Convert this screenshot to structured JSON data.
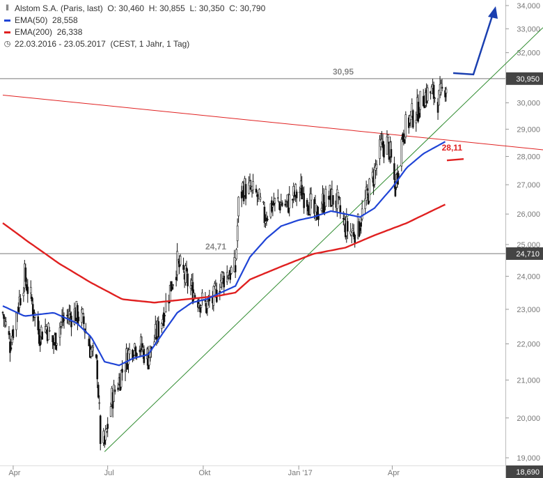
{
  "chart_data": {
    "type": "candlestick",
    "title": "Alstom S.A. (Paris, last)",
    "ohlc": {
      "open_label": "O:",
      "open": "30,460",
      "high_label": "H:",
      "high": "30,855",
      "low_label": "L:",
      "low": "30,350",
      "close_label": "C:",
      "close": "30,790"
    },
    "indicators": [
      {
        "name": "EMA(50)",
        "value": "28,558",
        "color": "#1f44d6"
      },
      {
        "name": "EMA(200)",
        "value": "26,338",
        "color": "#e02020"
      }
    ],
    "period": "22.03.2016 - 23.05.2017",
    "period_info": "(CEST, 1 Jahr, 1 Tag)",
    "ylim": [
      18.6,
      34.3
    ],
    "y_scale": "log",
    "y_ticks": [
      {
        "v": 19,
        "label": "19,000"
      },
      {
        "v": 20,
        "label": "20,000"
      },
      {
        "v": 21,
        "label": "21,000"
      },
      {
        "v": 22,
        "label": "22,000"
      },
      {
        "v": 23,
        "label": "23,000"
      },
      {
        "v": 24,
        "label": "24,000"
      },
      {
        "v": 25,
        "label": "25,000"
      },
      {
        "v": 26,
        "label": "26,000"
      },
      {
        "v": 27,
        "label": "27,000"
      },
      {
        "v": 28,
        "label": "28,000"
      },
      {
        "v": 29,
        "label": "29,000"
      },
      {
        "v": 30,
        "label": "30,000"
      },
      {
        "v": 31,
        "label": "31,000"
      },
      {
        "v": 32,
        "label": "32,000"
      },
      {
        "v": 33,
        "label": "33,000"
      },
      {
        "v": 34,
        "label": "34,000"
      }
    ],
    "x_ticks": [
      {
        "date": "2016-04-01",
        "label": "Apr"
      },
      {
        "date": "2016-07-01",
        "label": "Jul"
      },
      {
        "date": "2016-10-01",
        "label": "Okt"
      },
      {
        "date": "2017-01-01",
        "label": "Jan '17"
      },
      {
        "date": "2017-04-01",
        "label": "Apr"
      }
    ],
    "x_start": "2016-03-22",
    "x_end": "2017-05-23",
    "price_anchors": [
      [
        "2016-03-22",
        22.9
      ],
      [
        "2016-03-29",
        22.0
      ],
      [
        "2016-04-05",
        23.0
      ],
      [
        "2016-04-12",
        24.0
      ],
      [
        "2016-04-19",
        23.2
      ],
      [
        "2016-04-26",
        22.3
      ],
      [
        "2016-05-03",
        22.5
      ],
      [
        "2016-05-10",
        22.0
      ],
      [
        "2016-05-17",
        22.6
      ],
      [
        "2016-05-24",
        22.8
      ],
      [
        "2016-05-31",
        22.9
      ],
      [
        "2016-06-07",
        22.7
      ],
      [
        "2016-06-14",
        21.9
      ],
      [
        "2016-06-21",
        21.3
      ],
      [
        "2016-06-24",
        19.5
      ],
      [
        "2016-06-28",
        19.3
      ],
      [
        "2016-07-05",
        20.5
      ],
      [
        "2016-07-12",
        21.0
      ],
      [
        "2016-07-19",
        21.6
      ],
      [
        "2016-07-26",
        22.0
      ],
      [
        "2016-08-02",
        21.9
      ],
      [
        "2016-08-09",
        21.6
      ],
      [
        "2016-08-16",
        22.2
      ],
      [
        "2016-08-23",
        22.8
      ],
      [
        "2016-08-30",
        23.6
      ],
      [
        "2016-09-06",
        24.4
      ],
      [
        "2016-09-13",
        24.0
      ],
      [
        "2016-09-20",
        23.6
      ],
      [
        "2016-09-27",
        23.3
      ],
      [
        "2016-10-04",
        23.1
      ],
      [
        "2016-10-11",
        23.3
      ],
      [
        "2016-10-18",
        23.9
      ],
      [
        "2016-10-25",
        24.1
      ],
      [
        "2016-11-01",
        24.2
      ],
      [
        "2016-11-04",
        26.3
      ],
      [
        "2016-11-08",
        26.9
      ],
      [
        "2016-11-15",
        26.8
      ],
      [
        "2016-11-22",
        26.6
      ],
      [
        "2016-11-29",
        25.9
      ],
      [
        "2016-12-06",
        26.3
      ],
      [
        "2016-12-13",
        26.4
      ],
      [
        "2016-12-20",
        26.3
      ],
      [
        "2016-12-27",
        26.6
      ],
      [
        "2017-01-03",
        26.8
      ],
      [
        "2017-01-10",
        26.5
      ],
      [
        "2017-01-17",
        25.9
      ],
      [
        "2017-01-24",
        26.4
      ],
      [
        "2017-01-31",
        26.6
      ],
      [
        "2017-02-07",
        26.4
      ],
      [
        "2017-02-14",
        25.6
      ],
      [
        "2017-02-21",
        25.4
      ],
      [
        "2017-02-28",
        25.6
      ],
      [
        "2017-03-07",
        26.5
      ],
      [
        "2017-03-14",
        27.3
      ],
      [
        "2017-03-21",
        28.3
      ],
      [
        "2017-03-28",
        28.5
      ],
      [
        "2017-04-04",
        26.9
      ],
      [
        "2017-04-11",
        28.8
      ],
      [
        "2017-04-18",
        29.4
      ],
      [
        "2017-04-25",
        29.7
      ],
      [
        "2017-05-02",
        30.3
      ],
      [
        "2017-05-09",
        30.4
      ],
      [
        "2017-05-16",
        30.1
      ],
      [
        "2017-05-23",
        30.79
      ]
    ],
    "ema50_anchors": [
      [
        "2016-03-22",
        23.1
      ],
      [
        "2016-04-12",
        22.8
      ],
      [
        "2016-05-10",
        22.9
      ],
      [
        "2016-06-01",
        22.6
      ],
      [
        "2016-06-15",
        22.2
      ],
      [
        "2016-06-28",
        21.5
      ],
      [
        "2016-07-12",
        21.4
      ],
      [
        "2016-07-26",
        21.6
      ],
      [
        "2016-08-09",
        21.7
      ],
      [
        "2016-08-23",
        22.3
      ],
      [
        "2016-09-06",
        22.9
      ],
      [
        "2016-09-20",
        23.2
      ],
      [
        "2016-10-04",
        23.3
      ],
      [
        "2016-10-18",
        23.5
      ],
      [
        "2016-11-01",
        23.7
      ],
      [
        "2016-11-15",
        24.6
      ],
      [
        "2016-12-01",
        25.2
      ],
      [
        "2016-12-15",
        25.6
      ],
      [
        "2017-01-01",
        25.8
      ],
      [
        "2017-01-15",
        25.9
      ],
      [
        "2017-02-01",
        26.1
      ],
      [
        "2017-02-15",
        26.0
      ],
      [
        "2017-03-01",
        25.9
      ],
      [
        "2017-03-15",
        26.2
      ],
      [
        "2017-04-01",
        26.9
      ],
      [
        "2017-04-15",
        27.6
      ],
      [
        "2017-05-01",
        28.1
      ],
      [
        "2017-05-23",
        28.558
      ]
    ],
    "ema200_anchors": [
      [
        "2016-03-22",
        25.7
      ],
      [
        "2016-04-15",
        25.1
      ],
      [
        "2016-05-15",
        24.4
      ],
      [
        "2016-06-15",
        23.8
      ],
      [
        "2016-07-15",
        23.3
      ],
      [
        "2016-08-15",
        23.2
      ],
      [
        "2016-09-15",
        23.3
      ],
      [
        "2016-10-15",
        23.4
      ],
      [
        "2016-11-01",
        23.5
      ],
      [
        "2016-11-15",
        23.9
      ],
      [
        "2016-12-15",
        24.3
      ],
      [
        "2017-01-15",
        24.7
      ],
      [
        "2017-02-15",
        24.9
      ],
      [
        "2017-03-15",
        25.3
      ],
      [
        "2017-04-15",
        25.7
      ],
      [
        "2017-05-23",
        26.338
      ]
    ],
    "horizontal_lines": [
      {
        "value": 30.95,
        "label": "30,95",
        "axis_label": "30,950"
      },
      {
        "value": 24.71,
        "label": "24,71",
        "axis_label": "24,710"
      }
    ],
    "axis_low_label": "18,690",
    "annotation_label": "28,11",
    "trend_lines": [
      {
        "name": "resistance",
        "color": "#e02020",
        "points": [
          [
            "2016-03-22",
            30.3
          ],
          [
            "2017-05-23",
            28.6
          ]
        ]
      },
      {
        "name": "support",
        "color": "#2e8b2e",
        "points": [
          [
            "2016-06-28",
            19.15
          ],
          [
            "2017-05-23",
            29.3
          ]
        ]
      }
    ],
    "arrow_color": "#1a3fb0"
  }
}
